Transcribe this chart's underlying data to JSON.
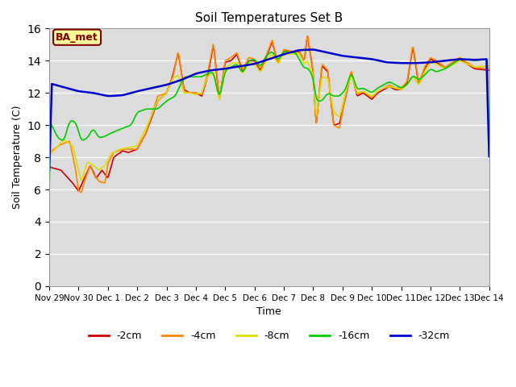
{
  "title": "Soil Temperatures Set B",
  "xlabel": "Time",
  "ylabel": "Soil Temperature (C)",
  "ylim": [
    0,
    16
  ],
  "yticks": [
    0,
    2,
    4,
    6,
    8,
    10,
    12,
    14,
    16
  ],
  "background_color": "#dcdcdc",
  "annotation_text": "BA_met",
  "annotation_bg": "#ffff99",
  "annotation_border": "#800000",
  "annotation_text_color": "#800000",
  "series": {
    "-2cm": {
      "color": "#cc0000",
      "lw": 1.2
    },
    "-4cm": {
      "color": "#ff8800",
      "lw": 1.2
    },
    "-8cm": {
      "color": "#dddd00",
      "lw": 1.2
    },
    "-16cm": {
      "color": "#00cc00",
      "lw": 1.2
    },
    "-32cm": {
      "color": "#0000cc",
      "lw": 1.8
    }
  },
  "x_tick_labels": [
    "Nov 29",
    "Nov 30",
    "Dec 1",
    "Dec 2",
    "Dec 3",
    "Dec 4",
    "Dec 5",
    "Dec 6",
    "Dec 7",
    "Dec 8",
    "Dec 9",
    "Dec 10",
    "Dec 11",
    "Dec 12",
    "Dec 13",
    "Dec 14"
  ],
  "time_days": 15
}
